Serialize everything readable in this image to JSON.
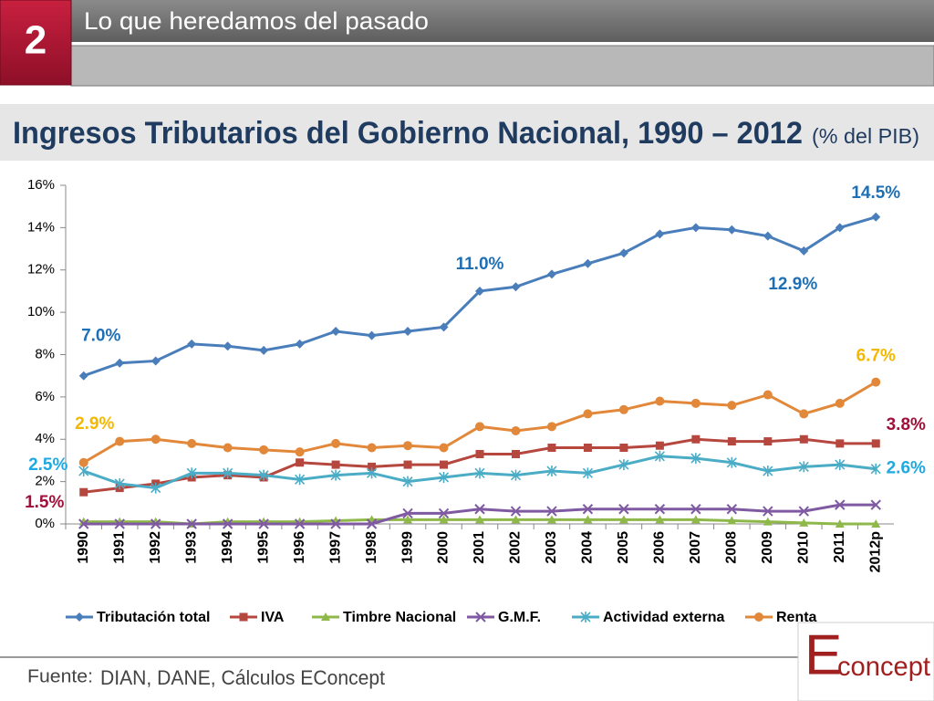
{
  "header": {
    "number": "2",
    "section": "Lo que heredamos del pasado"
  },
  "chart_data": {
    "type": "line",
    "title": "Ingresos Tributarios del Gobierno Nacional, 1990 – 2012",
    "subtitle": "(% del PIB)",
    "categories": [
      "1990",
      "1991",
      "1992",
      "1993",
      "1994",
      "1995",
      "1996",
      "1997",
      "1998",
      "1999",
      "2000",
      "2001",
      "2002",
      "2003",
      "2004",
      "2005",
      "2006",
      "2007",
      "2008",
      "2009",
      "2010",
      "2011",
      "2012p"
    ],
    "ylim": [
      0,
      16
    ],
    "yticks": [
      {
        "value": 0,
        "label": "0%"
      },
      {
        "value": 2,
        "label": "2%"
      },
      {
        "value": 4,
        "label": "4%"
      },
      {
        "value": 6,
        "label": "6%"
      },
      {
        "value": 8,
        "label": "8%"
      },
      {
        "value": 10,
        "label": "10%"
      },
      {
        "value": 12,
        "label": "12%"
      },
      {
        "value": 14,
        "label": "14%"
      },
      {
        "value": 16,
        "label": "16%"
      }
    ],
    "grid": false,
    "legend": "bottom",
    "series": [
      {
        "name": "Tributación total",
        "color": "#4a7ebb",
        "marker": "diamond",
        "label_color": "#1f6fb5",
        "values": [
          7.0,
          7.6,
          7.7,
          8.5,
          8.4,
          8.2,
          8.5,
          9.1,
          8.9,
          9.1,
          9.3,
          11.0,
          11.2,
          11.8,
          12.3,
          12.8,
          13.7,
          14.0,
          13.9,
          13.6,
          12.9,
          14.0,
          14.5
        ],
        "value_labels": [
          "7.0%",
          null,
          null,
          null,
          null,
          null,
          null,
          null,
          null,
          null,
          null,
          "11.0%",
          null,
          null,
          null,
          null,
          null,
          null,
          null,
          null,
          "12.9%",
          null,
          "14.5%"
        ]
      },
      {
        "name": "IVA",
        "color": "#b5473f",
        "marker": "square",
        "label_color": "#a0103a",
        "values": [
          1.5,
          1.7,
          1.9,
          2.2,
          2.3,
          2.2,
          2.9,
          2.8,
          2.7,
          2.8,
          2.8,
          3.3,
          3.3,
          3.6,
          3.6,
          3.6,
          3.7,
          4.0,
          3.9,
          3.9,
          4.0,
          3.8,
          3.8
        ],
        "value_labels": [
          "1.5%",
          null,
          null,
          null,
          null,
          null,
          null,
          null,
          null,
          null,
          null,
          null,
          null,
          null,
          null,
          null,
          null,
          null,
          null,
          null,
          null,
          null,
          "3.8%"
        ]
      },
      {
        "name": "Timbre Nacional",
        "color": "#8fb84a",
        "marker": "triangle",
        "values": [
          0.1,
          0.1,
          0.1,
          0.0,
          0.1,
          0.1,
          0.1,
          0.15,
          0.2,
          0.2,
          0.2,
          0.2,
          0.2,
          0.2,
          0.2,
          0.2,
          0.2,
          0.2,
          0.15,
          0.1,
          0.05,
          0.0,
          0.0
        ]
      },
      {
        "name": "G.M.F.",
        "color": "#7f5aa2",
        "marker": "x",
        "values": [
          0,
          0,
          0,
          0,
          0,
          0,
          0,
          0,
          0,
          0.5,
          0.5,
          0.7,
          0.6,
          0.6,
          0.7,
          0.7,
          0.7,
          0.7,
          0.7,
          0.6,
          0.6,
          0.9,
          0.9
        ]
      },
      {
        "name": "Actividad externa",
        "color": "#4bacc6",
        "marker": "star",
        "label_color": "#1fa9e0",
        "values": [
          2.5,
          1.9,
          1.7,
          2.4,
          2.4,
          2.3,
          2.1,
          2.3,
          2.4,
          2.0,
          2.2,
          2.4,
          2.3,
          2.5,
          2.4,
          2.8,
          3.2,
          3.1,
          2.9,
          2.5,
          2.7,
          2.8,
          2.6
        ],
        "value_labels": [
          "2.5%",
          null,
          null,
          null,
          null,
          null,
          null,
          null,
          null,
          null,
          null,
          null,
          null,
          null,
          null,
          null,
          null,
          null,
          null,
          null,
          null,
          null,
          "2.6%"
        ]
      },
      {
        "name": "Renta",
        "color": "#e2883a",
        "marker": "circle",
        "label_color": "#f5b800",
        "values": [
          2.9,
          3.9,
          4.0,
          3.8,
          3.6,
          3.5,
          3.4,
          3.8,
          3.6,
          3.7,
          3.6,
          4.6,
          4.4,
          4.6,
          5.2,
          5.4,
          5.8,
          5.7,
          5.6,
          6.1,
          5.2,
          5.7,
          6.7
        ],
        "value_labels": [
          "2.9%",
          null,
          null,
          null,
          null,
          null,
          null,
          null,
          null,
          null,
          null,
          null,
          null,
          null,
          null,
          null,
          null,
          null,
          null,
          null,
          null,
          null,
          "6.7%"
        ]
      }
    ]
  },
  "footer": {
    "source_label": "Fuente:",
    "source": "DIAN, DANE, Cálculos EConcept",
    "logo_e": "E",
    "logo_rest": "concept"
  }
}
